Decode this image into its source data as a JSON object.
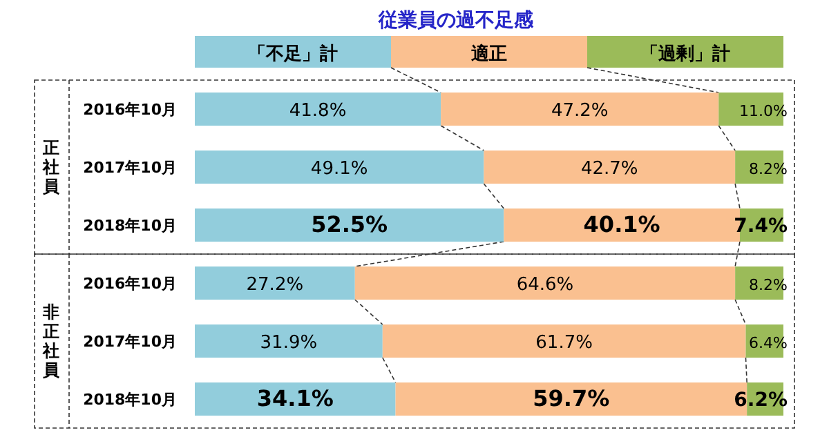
{
  "chart_data": {
    "type": "bar",
    "orientation": "horizontal",
    "stacked": true,
    "title": "従業員の過不足感",
    "legend": "top",
    "categories": [
      "2016年10月",
      "2017年10月",
      "2018年10月",
      "2016年10月",
      "2017年10月",
      "2018年10月"
    ],
    "annotations": [
      "正社員",
      "非正社員"
    ],
    "series": [
      {
        "name": "「不足」計",
        "color": "#92cddc",
        "values": [
          41.8,
          49.1,
          52.5,
          27.2,
          31.9,
          34.1
        ],
        "value_labels": [
          "41.8%",
          "49.1%",
          "**52.5%**",
          "27.2%",
          "31.9%",
          "**34.1%**"
        ]
      },
      {
        "name": "適正",
        "color": "#fac090",
        "values": [
          47.2,
          42.7,
          40.1,
          64.6,
          61.7,
          59.7
        ],
        "value_labels": [
          "47.2%",
          "42.7%",
          "**40.1%**",
          "64.6%",
          "61.7%",
          "**59.7%**"
        ]
      },
      {
        "name": "「過剰」計",
        "color": "#9bbb59",
        "values": [
          11.0,
          8.2,
          7.4,
          8.2,
          6.4,
          6.2
        ],
        "value_labels": [
          "11.0%",
          "8.2%",
          "**7.4%**",
          "8.2%",
          "6.4%",
          "**6.2%**"
        ]
      }
    ]
  }
}
